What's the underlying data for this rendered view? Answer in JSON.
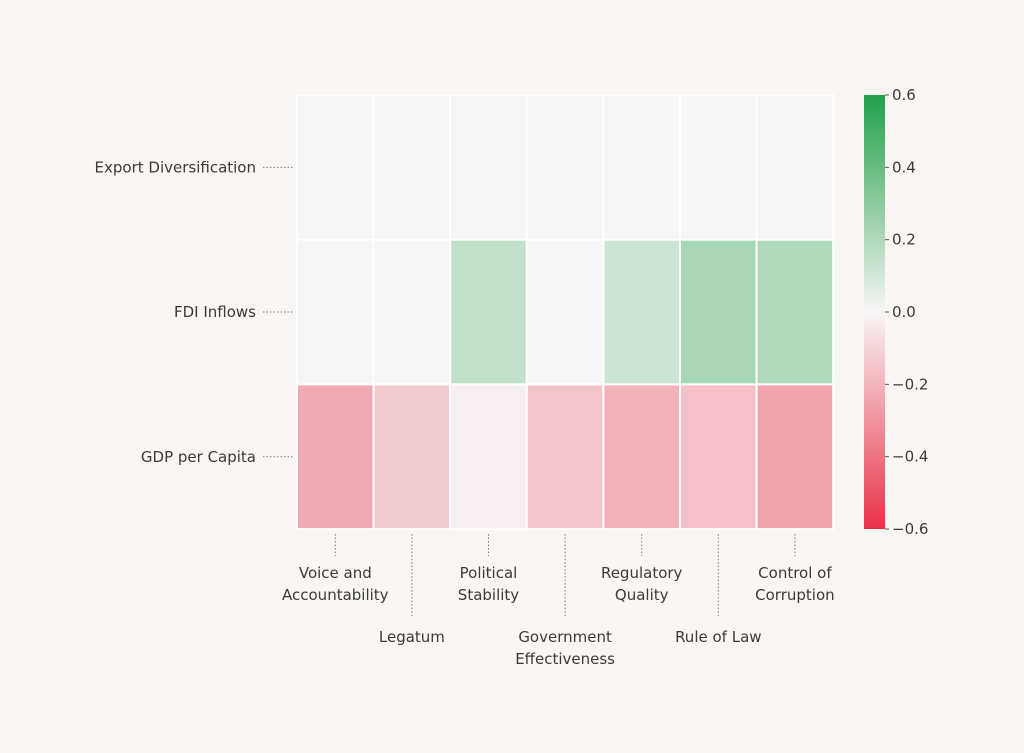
{
  "chart_data": {
    "type": "heatmap",
    "title": "",
    "rows": [
      "Export Diversification",
      "FDI Inflows",
      "GDP per Capita"
    ],
    "columns": [
      {
        "lines": [
          "Voice and",
          "Accountability"
        ]
      },
      {
        "lines": [
          "Legatum"
        ]
      },
      {
        "lines": [
          "Political",
          "Stability"
        ]
      },
      {
        "lines": [
          "Government",
          "Effectiveness"
        ]
      },
      {
        "lines": [
          "Regulatory",
          "Quality"
        ]
      },
      {
        "lines": [
          "Rule of Law"
        ]
      },
      {
        "lines": [
          "Control of",
          "Corruption"
        ]
      }
    ],
    "values": [
      [
        0.0,
        0.0,
        0.0,
        0.0,
        0.0,
        0.0,
        0.0
      ],
      [
        0.0,
        0.0,
        0.15,
        0.0,
        0.12,
        0.22,
        0.2
      ],
      [
        -0.23,
        -0.13,
        -0.02,
        -0.15,
        -0.21,
        -0.16,
        -0.25
      ]
    ],
    "colorbar": {
      "min": -0.6,
      "max": 0.6,
      "ticks": [
        "0.6",
        "0.4",
        "0.2",
        "0.0",
        "−0.2",
        "−0.4",
        "−0.6"
      ],
      "low_color": "#e8324a",
      "mid_color": "#f7f5f5",
      "high_color": "#21a04a"
    }
  }
}
